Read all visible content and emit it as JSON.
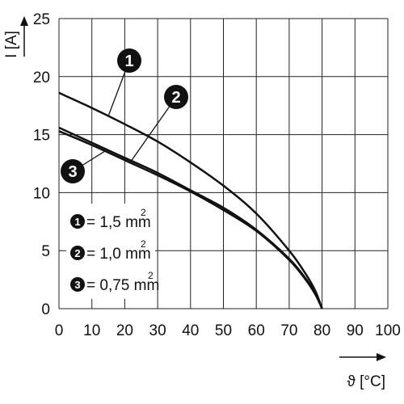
{
  "chart_data": {
    "type": "line",
    "xlabel": "ϑ [°C]",
    "ylabel": "I [A]",
    "xlim": [
      0,
      100
    ],
    "ylim": [
      0,
      25
    ],
    "x_ticks": [
      0,
      10,
      20,
      30,
      40,
      50,
      60,
      70,
      80,
      90,
      100
    ],
    "y_ticks": [
      0,
      5,
      10,
      15,
      20,
      25
    ],
    "grid": true,
    "series": [
      {
        "name": "1",
        "x": [
          0,
          10,
          20,
          30,
          40,
          50,
          60,
          70,
          75,
          78,
          80
        ],
        "y": [
          18.6,
          17.3,
          15.9,
          14.4,
          12.6,
          10.6,
          8.2,
          5.0,
          3.0,
          1.5,
          0
        ]
      },
      {
        "name": "2",
        "x": [
          0,
          10,
          20,
          30,
          40,
          50,
          60,
          70,
          75,
          78,
          80
        ],
        "y": [
          15.6,
          14.3,
          13.0,
          11.7,
          10.2,
          8.7,
          6.8,
          4.3,
          2.6,
          1.3,
          0
        ]
      },
      {
        "name": "3",
        "x": [
          0,
          10,
          20,
          30,
          40,
          50,
          60,
          70,
          75,
          78,
          80
        ],
        "y": [
          15.3,
          14.1,
          12.8,
          11.5,
          10.1,
          8.5,
          6.7,
          4.2,
          2.5,
          1.2,
          0
        ]
      }
    ],
    "legend": {
      "placement": "bottom-left",
      "entries": [
        {
          "badge": "1",
          "text": "= 1,5 mm",
          "sup": "2"
        },
        {
          "badge": "2",
          "text": "= 1,0 mm",
          "sup": "2"
        },
        {
          "badge": "3",
          "text": "= 0,75 mm",
          "sup": "2"
        }
      ]
    },
    "annotations": [
      {
        "label": "1",
        "target_series": "1",
        "target_x": 15
      },
      {
        "label": "2",
        "target_series": "2",
        "target_x": 22
      },
      {
        "label": "3",
        "target_series": "3",
        "target_x": 14
      }
    ]
  },
  "colors": {
    "grid": "#222222",
    "line": "#111111",
    "badge": "#111111",
    "legend_bg": "#ffffff",
    "background": "#ffffff"
  }
}
